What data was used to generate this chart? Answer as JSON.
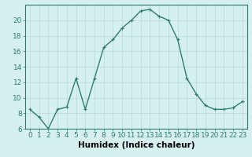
{
  "x": [
    0,
    1,
    2,
    3,
    4,
    5,
    6,
    7,
    8,
    9,
    10,
    11,
    12,
    13,
    14,
    15,
    16,
    17,
    18,
    19,
    20,
    21,
    22,
    23
  ],
  "y": [
    8.5,
    7.5,
    6.0,
    8.5,
    8.8,
    12.5,
    8.5,
    12.5,
    16.5,
    17.5,
    19.0,
    20.0,
    21.2,
    21.4,
    20.5,
    20.0,
    17.5,
    12.5,
    10.5,
    9.0,
    8.5,
    8.5,
    8.7,
    9.5
  ],
  "line_color": "#2e7d6e",
  "marker": "+",
  "marker_color": "#2e7d6e",
  "background_color": "#d6f0f0",
  "grid_color": "#b8dada",
  "xlabel": "Humidex (Indice chaleur)",
  "xlim": [
    -0.5,
    23.5
  ],
  "ylim": [
    6,
    22
  ],
  "yticks": [
    6,
    8,
    10,
    12,
    14,
    16,
    18,
    20
  ],
  "xticks": [
    0,
    1,
    2,
    3,
    4,
    5,
    6,
    7,
    8,
    9,
    10,
    11,
    12,
    13,
    14,
    15,
    16,
    17,
    18,
    19,
    20,
    21,
    22,
    23
  ],
  "font_size_xlabel": 7.5,
  "font_size_ticks": 6.5,
  "line_width": 1.0,
  "marker_size": 3.5
}
